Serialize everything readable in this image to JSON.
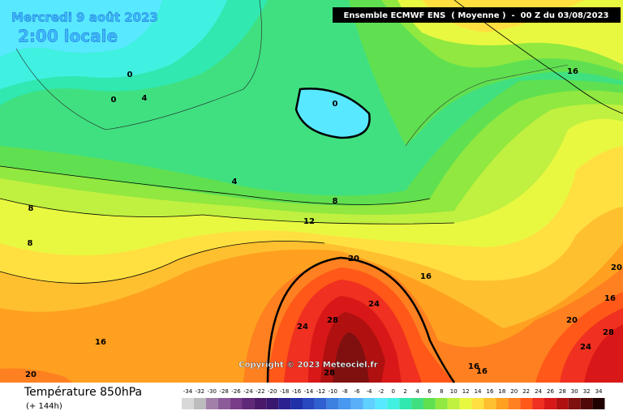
{
  "header": {
    "date": "Mercredi 9 août 2023",
    "time": "2:00 locale",
    "model": "Ensemble ECMWF ENS  ( Moyenne )  -  00 Z du 03/08/2023"
  },
  "contour_labels": [
    0,
    0,
    4,
    0,
    16,
    4,
    8,
    12,
    8,
    8,
    20,
    16,
    24,
    24,
    28,
    16,
    20,
    28,
    16,
    16,
    20,
    28,
    24,
    16,
    20
  ],
  "copyright": "Copyright © 2023 Meteociel.fr",
  "footer": {
    "title": "Température 850hPa",
    "lead": "(+ 144h)"
  },
  "legend": {
    "values": [
      -34,
      -32,
      -30,
      -28,
      -26,
      -24,
      -22,
      -20,
      -18,
      -16,
      -14,
      -12,
      -10,
      -8,
      -6,
      -4,
      -2,
      0,
      2,
      4,
      6,
      8,
      10,
      12,
      14,
      16,
      18,
      20,
      22,
      24,
      26,
      28,
      30,
      32,
      34
    ],
    "colors": [
      "#d8d8d8",
      "#bcbcbc",
      "#a080a8",
      "#8c5c98",
      "#783c88",
      "#602878",
      "#4a1a68",
      "#3a1870",
      "#2c2090",
      "#2030a8",
      "#2848c0",
      "#3060d0",
      "#3c80e0",
      "#4898f0",
      "#58b0f8",
      "#60d0ff",
      "#58e8ff",
      "#40f0e0",
      "#30e8b0",
      "#40e080",
      "#60e050",
      "#90e840",
      "#c0f040",
      "#e8f840",
      "#ffe040",
      "#ffc030",
      "#ffa020",
      "#ff8020",
      "#ff5818",
      "#f03020",
      "#d81818",
      "#b01010",
      "#801010",
      "#500808",
      "#200000"
    ]
  }
}
